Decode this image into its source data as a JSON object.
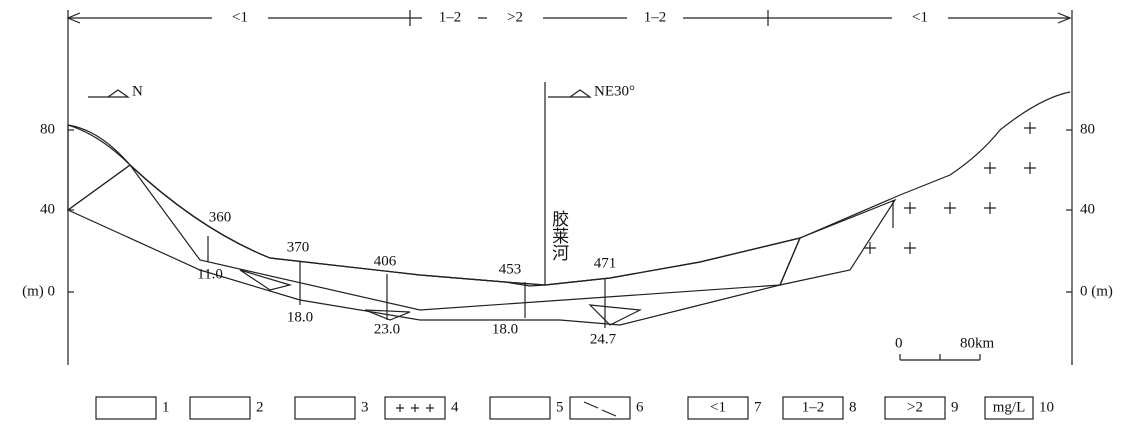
{
  "zones": [
    "<1",
    "1–2",
    ">2",
    "1–2",
    "<1"
  ],
  "sections": [
    {
      "direction": "N"
    },
    {
      "direction": "NE30°"
    }
  ],
  "river": "胶莱河",
  "left_axis": [
    "80",
    "40",
    "(m) 0"
  ],
  "right_axis": [
    "80",
    "40",
    "0 (m)"
  ],
  "wells": [
    {
      "label": "360",
      "depth": "11.0"
    },
    {
      "label": "370",
      "depth": "18.0"
    },
    {
      "label": "406",
      "depth": "23.0"
    },
    {
      "label": "453",
      "depth": "18.0"
    },
    {
      "label": "471",
      "depth": "24.7"
    }
  ],
  "scale": {
    "start": "0",
    "end": "80km"
  },
  "legend": [
    {
      "number": "1"
    },
    {
      "number": "2"
    },
    {
      "number": "3"
    },
    {
      "number": "4"
    },
    {
      "number": "5"
    },
    {
      "number": "6"
    },
    {
      "box": "<1",
      "number": "7"
    },
    {
      "box": "1–2",
      "number": "8"
    },
    {
      "box": ">2",
      "number": "9"
    },
    {
      "box": "mg/L",
      "number": "10"
    }
  ]
}
